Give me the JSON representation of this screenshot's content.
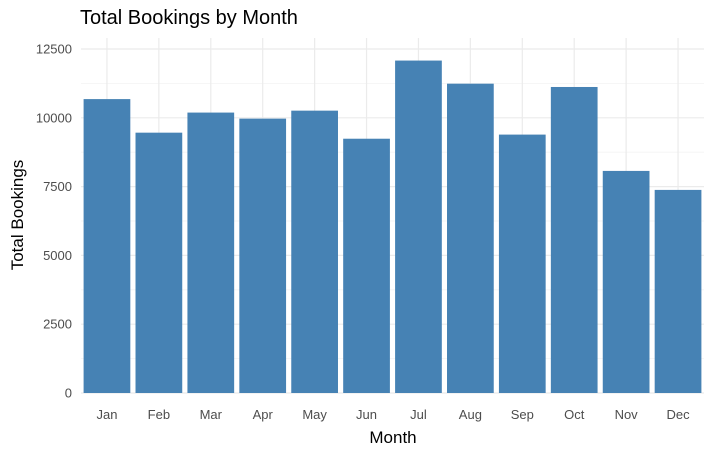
{
  "chart_data": {
    "type": "bar",
    "title": "Total Bookings by Month",
    "xlabel": "Month",
    "ylabel": "Total Bookings",
    "categories": [
      "Jan",
      "Feb",
      "Mar",
      "Apr",
      "May",
      "Jun",
      "Jul",
      "Aug",
      "Sep",
      "Oct",
      "Nov",
      "Dec"
    ],
    "values": [
      10680,
      9460,
      10190,
      9970,
      10260,
      9240,
      12080,
      11240,
      9390,
      11120,
      8070,
      7380
    ],
    "ylim": [
      0,
      12900
    ],
    "yticks": [
      0,
      2500,
      5000,
      7500,
      10000,
      12500
    ],
    "ytick_labels": [
      "0",
      "2500",
      "5000",
      "7500",
      "10000",
      "12500"
    ],
    "bar_color": "#4682B4",
    "grid": true,
    "legend": "none"
  }
}
